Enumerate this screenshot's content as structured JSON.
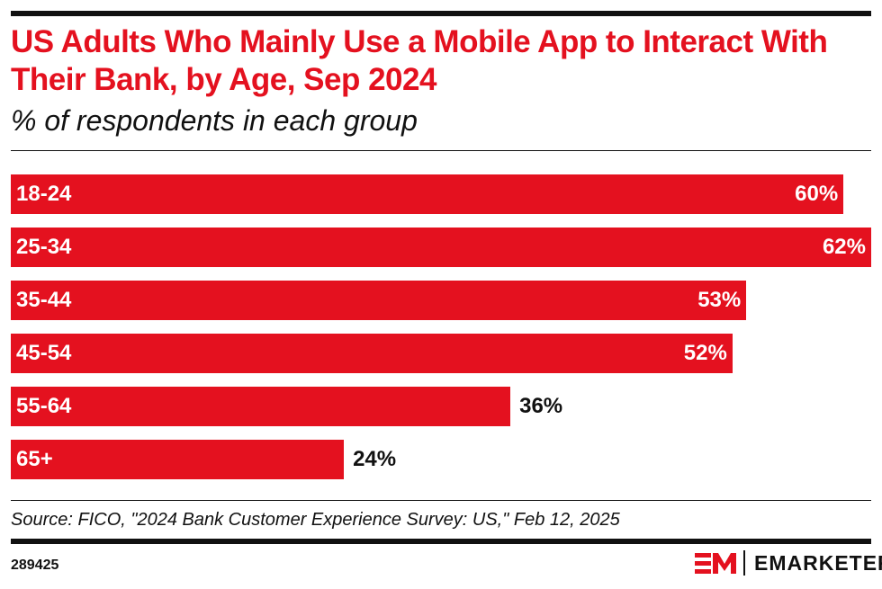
{
  "chart_data": {
    "type": "bar",
    "orientation": "horizontal",
    "title": "US Adults Who Mainly Use a Mobile App to Interact With Their Bank, by Age, Sep 2024",
    "subtitle": "% of respondents in each group",
    "categories": [
      "18-24",
      "25-34",
      "35-44",
      "45-54",
      "55-64",
      "65+"
    ],
    "values": [
      60,
      62,
      53,
      52,
      36,
      24
    ],
    "labels": [
      "60%",
      "62%",
      "53%",
      "52%",
      "36%",
      "24%"
    ],
    "xlim": [
      0,
      62
    ],
    "grid": false,
    "bar_color": "#e4111f"
  },
  "footer": {
    "source": "Source: FICO, \"2024 Bank Customer Experience Survey: US,\" Feb 12, 2025",
    "chart_id": "289425",
    "brand": "EMARKETER"
  }
}
